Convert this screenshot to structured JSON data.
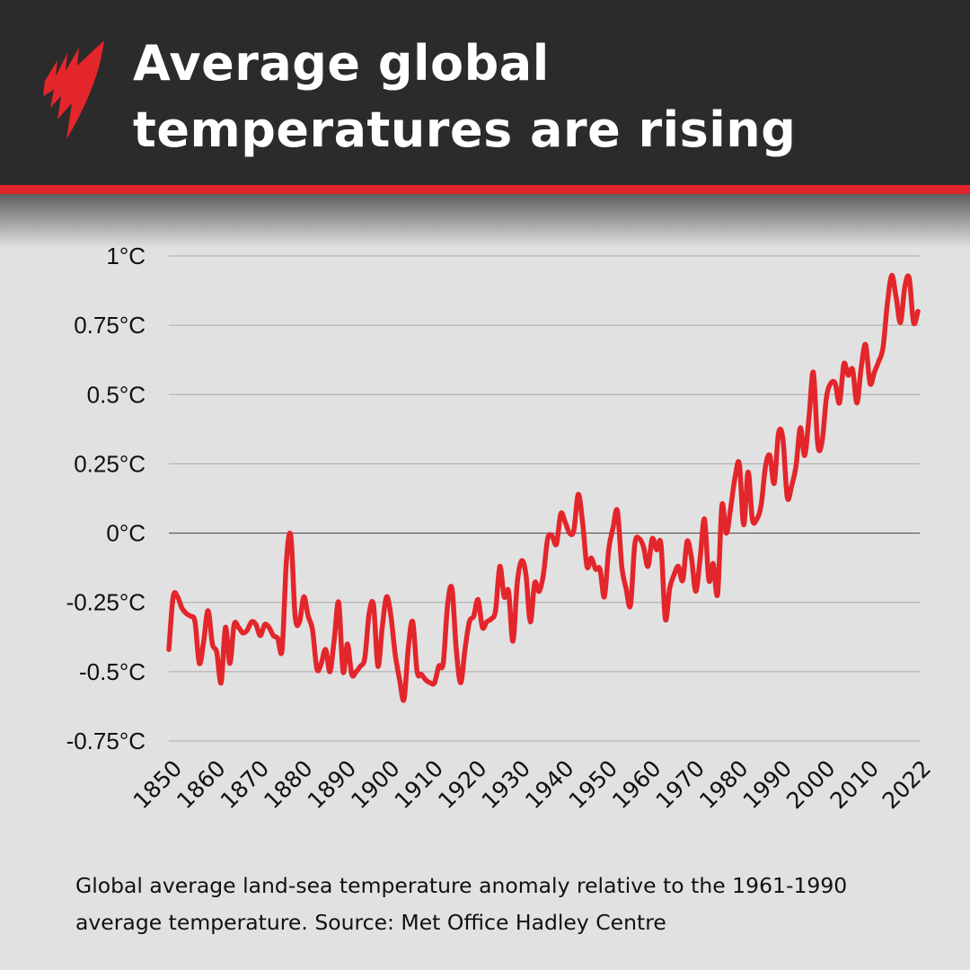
{
  "header": {
    "title": "Average global temperatures are rising",
    "logo": "SBS",
    "accent_color": "#e3262b",
    "background_color": "#2b2b2b"
  },
  "caption": "Global average land-sea temperature anomaly relative to the 1961-1990 average temperature. Source: Met Office Hadley Centre",
  "chart_data": {
    "type": "line",
    "title": "Average global temperatures are rising",
    "xlabel": "",
    "ylabel": "",
    "line_color": "#e3262b",
    "grid": true,
    "xlim": [
      1850,
      2022
    ],
    "ylim": [
      -0.75,
      1
    ],
    "y_ticks": [
      {
        "value": 1,
        "label": "1°C"
      },
      {
        "value": 0.75,
        "label": "0.75°C"
      },
      {
        "value": 0.5,
        "label": "0.5°C"
      },
      {
        "value": 0.25,
        "label": "0.25°C"
      },
      {
        "value": 0,
        "label": "0°C"
      },
      {
        "value": -0.25,
        "label": "-0.25°C"
      },
      {
        "value": -0.5,
        "label": "-0.5°C"
      },
      {
        "value": -0.75,
        "label": "-0.75°C"
      }
    ],
    "x_ticks": [
      {
        "value": 1850,
        "label": "1850"
      },
      {
        "value": 1860,
        "label": "1860"
      },
      {
        "value": 1870,
        "label": "1870"
      },
      {
        "value": 1880,
        "label": "1880"
      },
      {
        "value": 1890,
        "label": "1890"
      },
      {
        "value": 1900,
        "label": "1900"
      },
      {
        "value": 1910,
        "label": "1910"
      },
      {
        "value": 1920,
        "label": "1920"
      },
      {
        "value": 1930,
        "label": "1930"
      },
      {
        "value": 1940,
        "label": "1940"
      },
      {
        "value": 1950,
        "label": "1950"
      },
      {
        "value": 1960,
        "label": "1960"
      },
      {
        "value": 1970,
        "label": "1970"
      },
      {
        "value": 1980,
        "label": "1980"
      },
      {
        "value": 1990,
        "label": "1990"
      },
      {
        "value": 2000,
        "label": "2000"
      },
      {
        "value": 2010,
        "label": "2010"
      },
      {
        "value": 2022,
        "label": "2022"
      }
    ],
    "x_start": 1850,
    "values": [
      -0.42,
      -0.23,
      -0.23,
      -0.27,
      -0.29,
      -0.3,
      -0.32,
      -0.47,
      -0.39,
      -0.28,
      -0.4,
      -0.43,
      -0.54,
      -0.34,
      -0.47,
      -0.33,
      -0.34,
      -0.36,
      -0.35,
      -0.32,
      -0.33,
      -0.37,
      -0.33,
      -0.34,
      -0.37,
      -0.38,
      -0.42,
      -0.1,
      -0.01,
      -0.3,
      -0.32,
      -0.23,
      -0.3,
      -0.35,
      -0.49,
      -0.47,
      -0.42,
      -0.5,
      -0.38,
      -0.25,
      -0.5,
      -0.4,
      -0.51,
      -0.5,
      -0.48,
      -0.45,
      -0.29,
      -0.26,
      -0.48,
      -0.34,
      -0.23,
      -0.3,
      -0.44,
      -0.53,
      -0.6,
      -0.41,
      -0.32,
      -0.5,
      -0.51,
      -0.53,
      -0.54,
      -0.54,
      -0.48,
      -0.47,
      -0.26,
      -0.2,
      -0.42,
      -0.54,
      -0.42,
      -0.32,
      -0.3,
      -0.24,
      -0.34,
      -0.32,
      -0.31,
      -0.28,
      -0.12,
      -0.23,
      -0.21,
      -0.39,
      -0.18,
      -0.1,
      -0.15,
      -0.32,
      -0.18,
      -0.21,
      -0.15,
      -0.02,
      -0.01,
      -0.04,
      0.07,
      0.04,
      0.0,
      0.01,
      0.14,
      0.04,
      -0.12,
      -0.09,
      -0.13,
      -0.13,
      -0.23,
      -0.06,
      0.02,
      0.08,
      -0.12,
      -0.2,
      -0.26,
      -0.04,
      -0.02,
      -0.05,
      -0.12,
      -0.02,
      -0.06,
      -0.04,
      -0.31,
      -0.2,
      -0.15,
      -0.12,
      -0.17,
      -0.03,
      -0.09,
      -0.21,
      -0.09,
      0.05,
      -0.17,
      -0.11,
      -0.22,
      0.1,
      0.0,
      0.09,
      0.2,
      0.25,
      0.03,
      0.22,
      0.05,
      0.05,
      0.1,
      0.24,
      0.28,
      0.18,
      0.36,
      0.34,
      0.13,
      0.17,
      0.24,
      0.38,
      0.28,
      0.42,
      0.58,
      0.32,
      0.33,
      0.49,
      0.54,
      0.54,
      0.47,
      0.61,
      0.57,
      0.59,
      0.47,
      0.6,
      0.68,
      0.54,
      0.58,
      0.62,
      0.67,
      0.83,
      0.93,
      0.85,
      0.76,
      0.89,
      0.92,
      0.76,
      0.8
    ]
  }
}
